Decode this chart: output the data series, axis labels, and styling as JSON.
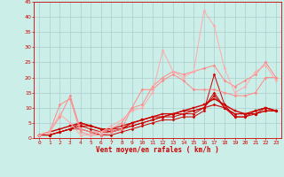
{
  "background_color": "#cceee8",
  "grid_color": "#aacccc",
  "xlabel": "Vent moyen/en rafales ( km/h )",
  "xlabel_color": "#cc0000",
  "xlabel_fontsize": 5.5,
  "tick_color": "#cc0000",
  "tick_fontsize": 4.5,
  "xlim": [
    -0.5,
    23.5
  ],
  "ylim": [
    0,
    45
  ],
  "yticks": [
    0,
    5,
    10,
    15,
    20,
    25,
    30,
    35,
    40,
    45
  ],
  "xticks": [
    0,
    1,
    2,
    3,
    4,
    5,
    6,
    7,
    8,
    9,
    10,
    11,
    12,
    13,
    14,
    15,
    16,
    17,
    18,
    19,
    20,
    21,
    22,
    23
  ],
  "lines": [
    {
      "x": [
        0,
        1,
        2,
        3,
        4,
        5,
        6,
        7,
        8,
        9,
        10,
        11,
        12,
        13,
        14,
        15,
        16,
        17,
        18,
        19,
        20,
        21,
        22,
        23
      ],
      "y": [
        1,
        1,
        2,
        3,
        3,
        2,
        1,
        1,
        2,
        3,
        4,
        5,
        6,
        6,
        7,
        7,
        9,
        21,
        11,
        7,
        7,
        9,
        10,
        9
      ],
      "color": "#cc0000",
      "lw": 0.7,
      "marker": "D",
      "ms": 1.5
    },
    {
      "x": [
        0,
        1,
        2,
        3,
        4,
        5,
        6,
        7,
        8,
        9,
        10,
        11,
        12,
        13,
        14,
        15,
        16,
        17,
        18,
        19,
        20,
        21,
        22,
        23
      ],
      "y": [
        1,
        1,
        2,
        3,
        4,
        3,
        2,
        2,
        3,
        4,
        5,
        6,
        7,
        7,
        8,
        8,
        10,
        15,
        10,
        7,
        7,
        8,
        10,
        9
      ],
      "color": "#cc0000",
      "lw": 0.7,
      "marker": "D",
      "ms": 1.5
    },
    {
      "x": [
        0,
        1,
        2,
        3,
        4,
        5,
        6,
        7,
        8,
        9,
        10,
        11,
        12,
        13,
        14,
        15,
        16,
        17,
        18,
        19,
        20,
        21,
        22,
        23
      ],
      "y": [
        1,
        1,
        2,
        3,
        4,
        4,
        3,
        3,
        3,
        4,
        5,
        6,
        7,
        8,
        8,
        9,
        10,
        14,
        10,
        8,
        8,
        8,
        9,
        9
      ],
      "color": "#cc0000",
      "lw": 0.7,
      "marker": "D",
      "ms": 1.5
    },
    {
      "x": [
        0,
        1,
        2,
        3,
        4,
        5,
        6,
        7,
        8,
        9,
        10,
        11,
        12,
        13,
        14,
        15,
        16,
        17,
        18,
        19,
        20,
        21,
        22,
        23
      ],
      "y": [
        1,
        1,
        2,
        3,
        5,
        4,
        3,
        3,
        4,
        5,
        6,
        7,
        7,
        8,
        9,
        9,
        10,
        11,
        10,
        8,
        8,
        8,
        9,
        9
      ],
      "color": "#cc0000",
      "lw": 0.8,
      "marker": "D",
      "ms": 1.5
    },
    {
      "x": [
        0,
        1,
        2,
        3,
        4,
        5,
        6,
        7,
        8,
        9,
        10,
        11,
        12,
        13,
        14,
        15,
        16,
        17,
        18,
        19,
        20,
        21,
        22,
        23
      ],
      "y": [
        1,
        2,
        3,
        4,
        5,
        4,
        3,
        2,
        3,
        5,
        6,
        7,
        8,
        8,
        9,
        10,
        11,
        13,
        11,
        9,
        8,
        9,
        10,
        9
      ],
      "color": "#cc0000",
      "lw": 1.0,
      "marker": "s",
      "ms": 1.5
    },
    {
      "x": [
        0,
        1,
        2,
        3,
        4,
        5,
        6,
        7,
        8,
        9,
        10,
        11,
        12,
        13,
        14,
        15,
        16,
        17,
        18,
        19,
        20,
        21,
        22,
        23
      ],
      "y": [
        1,
        2,
        11,
        13,
        2,
        1,
        1,
        2,
        3,
        10,
        16,
        16,
        19,
        21,
        19,
        16,
        16,
        16,
        15,
        14,
        14,
        15,
        20,
        20
      ],
      "color": "#ff8888",
      "lw": 0.7,
      "marker": "D",
      "ms": 1.5
    },
    {
      "x": [
        0,
        1,
        2,
        3,
        4,
        5,
        6,
        7,
        8,
        9,
        10,
        11,
        12,
        13,
        14,
        15,
        16,
        17,
        18,
        19,
        20,
        21,
        22,
        23
      ],
      "y": [
        1,
        2,
        7,
        14,
        3,
        2,
        2,
        3,
        5,
        10,
        11,
        17,
        20,
        22,
        21,
        22,
        23,
        24,
        19,
        17,
        19,
        21,
        25,
        20
      ],
      "color": "#ff8888",
      "lw": 0.7,
      "marker": "D",
      "ms": 1.5
    },
    {
      "x": [
        0,
        1,
        2,
        3,
        4,
        5,
        6,
        7,
        8,
        9,
        10,
        11,
        12,
        13,
        14,
        15,
        16,
        17,
        18,
        19,
        20,
        21,
        22,
        23
      ],
      "y": [
        1,
        2,
        8,
        5,
        1,
        1,
        2,
        4,
        6,
        9,
        10,
        15,
        29,
        22,
        20,
        22,
        42,
        37,
        23,
        15,
        17,
        22,
        24,
        19
      ],
      "color": "#ffaaaa",
      "lw": 0.7,
      "marker": "D",
      "ms": 1.5
    }
  ]
}
